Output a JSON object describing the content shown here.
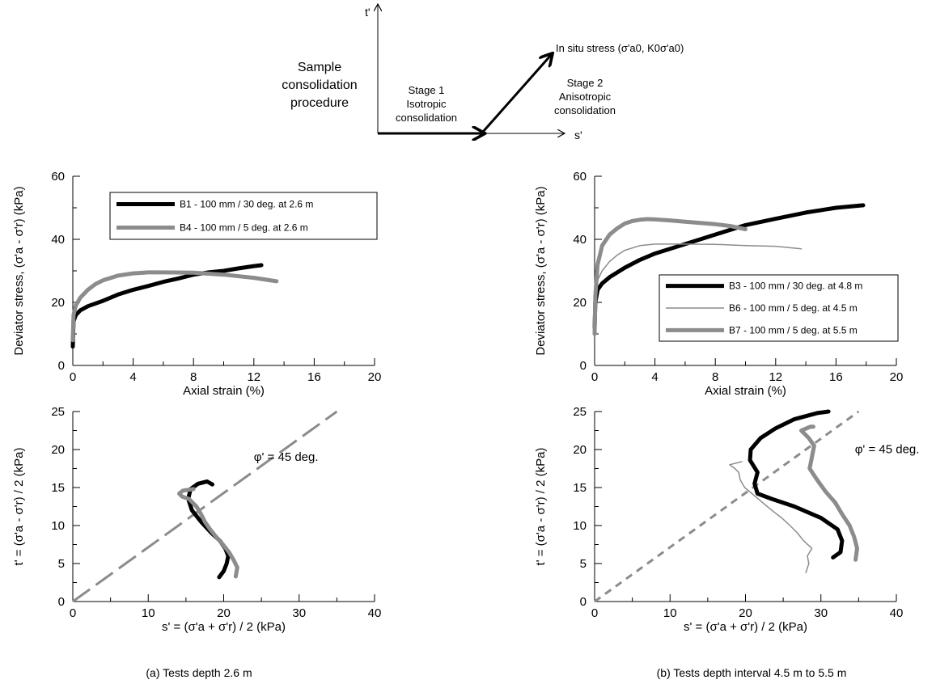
{
  "schematic": {
    "title_lines": [
      "Sample",
      "consolidation",
      "procedure"
    ],
    "t_axis_label": "t'",
    "s_axis_label": "s'",
    "stage1_lines": [
      "Stage 1",
      "Isotropic",
      "consolidation"
    ],
    "stage2_lines": [
      "Stage 2",
      "Anisotropic",
      "consolidation"
    ],
    "in_situ_label": "In situ stress (σ'a0, K0σ'a0)"
  },
  "captions": {
    "a": "(a) Tests depth 2.6 m",
    "b": "(b) Tests depth interval 4.5 m to 5.5 m"
  },
  "chart_data": [
    {
      "id": "a-stress-strain",
      "type": "line",
      "xlabel": "Axial strain (%)",
      "ylabel": "Deviator stress, (σ'a - σ'r) (kPa)",
      "xlim": [
        0,
        20
      ],
      "ylim": [
        0,
        60
      ],
      "xticks": [
        0,
        4,
        8,
        12,
        16,
        20
      ],
      "yticks": [
        0,
        20,
        40,
        60
      ],
      "legend_position": "top-right",
      "series": [
        {
          "name": "B1 - 100 mm / 30 deg. at 2.6 m",
          "color": "#000000",
          "width": 5,
          "x": [
            0,
            0.05,
            0.2,
            0.5,
            1,
            2,
            3,
            4,
            5,
            6,
            7,
            8,
            9,
            10,
            11,
            12,
            12.5
          ],
          "y": [
            6,
            14,
            16,
            17.5,
            18.8,
            20.5,
            22.5,
            24,
            25.2,
            26.5,
            27.6,
            28.8,
            29.5,
            30,
            30.8,
            31.5,
            31.8
          ]
        },
        {
          "name": "B4 - 100 mm / 5 deg. at 2.6 m",
          "color": "#8c8c8c",
          "width": 5,
          "x": [
            0,
            0.05,
            0.2,
            0.5,
            1,
            1.5,
            2,
            3,
            4,
            5,
            6,
            8,
            10,
            12,
            13.5
          ],
          "y": [
            8,
            16,
            19,
            21.5,
            24,
            25.8,
            27,
            28.5,
            29.2,
            29.5,
            29.5,
            29.4,
            28.8,
            27.8,
            26.7
          ]
        }
      ]
    },
    {
      "id": "b-stress-strain",
      "type": "line",
      "xlabel": "Axial strain (%)",
      "ylabel": "Deviator stress, (σ'a - σ'r) (kPa)",
      "xlim": [
        0,
        20
      ],
      "ylim": [
        0,
        60
      ],
      "xticks": [
        0,
        4,
        8,
        12,
        16,
        20
      ],
      "yticks": [
        0,
        20,
        40,
        60
      ],
      "legend_position": "bottom-right",
      "series": [
        {
          "name": "B3 - 100 mm / 30 deg. at 4.8 m",
          "color": "#000000",
          "width": 5,
          "x": [
            0,
            0.05,
            0.2,
            0.5,
            1,
            2,
            3,
            4,
            5,
            6,
            8,
            10,
            12,
            14,
            16,
            17.8
          ],
          "y": [
            12,
            20,
            24,
            26,
            28,
            31,
            33.5,
            35.5,
            37,
            38.5,
            41.5,
            44.5,
            46.5,
            48.5,
            50,
            50.8
          ]
        },
        {
          "name": "B6 - 100 mm / 5 deg. at 4.5 m",
          "color": "#8c8c8c",
          "width": 1.5,
          "x": [
            0,
            0.05,
            0.2,
            0.5,
            1,
            1.5,
            2,
            3,
            4,
            5,
            6,
            8,
            10,
            12,
            13.7
          ],
          "y": [
            10,
            22,
            27,
            30,
            33,
            35,
            36.5,
            38,
            38.5,
            38.5,
            38.5,
            38.4,
            38,
            37.8,
            37
          ]
        },
        {
          "name": "B7 - 100 mm / 5 deg. at 5.5 m",
          "color": "#8c8c8c",
          "width": 5,
          "x": [
            0,
            0.05,
            0.2,
            0.5,
            1,
            1.5,
            2,
            2.5,
            3,
            3.5,
            4,
            5,
            6,
            7,
            8,
            9,
            10
          ],
          "y": [
            10,
            22,
            32,
            38,
            41.5,
            43.5,
            45,
            45.8,
            46.2,
            46.4,
            46.3,
            46,
            45.6,
            45.2,
            44.8,
            44.2,
            43.2
          ]
        }
      ]
    },
    {
      "id": "a-stress-path",
      "type": "line",
      "xlabel": "s' = (σ'a + σ'r) / 2 (kPa)",
      "ylabel": "t' = (σ'a - σ'r) / 2 (kPa)",
      "xlim": [
        0,
        40
      ],
      "ylim": [
        0,
        25
      ],
      "xticks": [
        0,
        10,
        20,
        30,
        40
      ],
      "yticks": [
        0,
        5,
        10,
        15,
        20,
        25
      ],
      "annotation": "φ' = 45 deg.",
      "reference_line": {
        "x": [
          0,
          35
        ],
        "y": [
          0,
          25
        ],
        "style": "long-dash",
        "color": "#8c8c8c"
      },
      "series": [
        {
          "name": "B1",
          "color": "#000000",
          "width": 5,
          "x": [
            19.4,
            20,
            20.4,
            20.6,
            20.2,
            19.5,
            18.4,
            17,
            15.8,
            15.3,
            15.6,
            16.6,
            17.8,
            18.5
          ],
          "y": [
            3.2,
            4,
            5,
            6,
            7,
            8,
            9,
            10.5,
            12,
            13.5,
            14.8,
            15.5,
            15.8,
            15.4
          ]
        },
        {
          "name": "B4",
          "color": "#8c8c8c",
          "width": 5,
          "x": [
            21.6,
            21.8,
            21.3,
            20.7,
            19.9,
            19,
            18.2,
            17.5,
            17,
            16.4,
            15.4,
            14.5,
            14.1,
            14.6,
            16
          ],
          "y": [
            3.3,
            4.5,
            5.5,
            6.5,
            7.5,
            8.5,
            9.5,
            10.5,
            11.5,
            12.5,
            13.5,
            13.8,
            14.2,
            14.6,
            14.8
          ]
        }
      ]
    },
    {
      "id": "b-stress-path",
      "type": "line",
      "xlabel": "s' = (σ'a + σ'r) / 2 (kPa)",
      "ylabel": "t' = (σ'a - σ'r) / 2 (kPa)",
      "xlim": [
        0,
        40
      ],
      "ylim": [
        0,
        25
      ],
      "xticks": [
        0,
        10,
        20,
        30,
        40
      ],
      "yticks": [
        0,
        5,
        10,
        15,
        20,
        25
      ],
      "annotation": "φ' = 45 deg.",
      "reference_line": {
        "x": [
          0,
          35
        ],
        "y": [
          0,
          25
        ],
        "style": "short-dash",
        "color": "#8c8c8c"
      },
      "series": [
        {
          "name": "B3",
          "color": "#000000",
          "width": 5,
          "x": [
            31.6,
            32.6,
            32.8,
            32.2,
            30,
            26.5,
            23.5,
            21.6,
            21.2,
            21.6,
            20.6,
            20.7,
            22,
            24,
            26.5,
            29.5,
            31
          ],
          "y": [
            5.8,
            6.5,
            8,
            9.5,
            11,
            12.5,
            13.5,
            14.2,
            15.5,
            17,
            18.6,
            20,
            21.5,
            22.8,
            24,
            24.8,
            25
          ]
        },
        {
          "name": "B6",
          "color": "#8c8c8c",
          "width": 1.5,
          "x": [
            28,
            28.4,
            28.2,
            28.8,
            27.7,
            26.9,
            25.9,
            24.8,
            23.5,
            22.3,
            21.1,
            19.9,
            19.3,
            19.1,
            18.6,
            17.9,
            19.5
          ],
          "y": [
            3.8,
            5,
            6,
            7,
            8,
            9,
            10,
            11,
            12,
            13,
            14,
            15,
            16,
            17,
            17.5,
            18,
            18.4
          ]
        },
        {
          "name": "B7",
          "color": "#8c8c8c",
          "width": 5,
          "x": [
            34.6,
            34.8,
            34.4,
            33.8,
            32.8,
            31.9,
            30.6,
            29.5,
            28.5,
            28.8,
            29.1,
            28.4,
            27.4,
            28.6,
            29
          ],
          "y": [
            5.5,
            7,
            8.5,
            10,
            11.5,
            13,
            14.5,
            16,
            17.5,
            19,
            20.5,
            21.5,
            22.5,
            23,
            23
          ]
        }
      ]
    }
  ]
}
